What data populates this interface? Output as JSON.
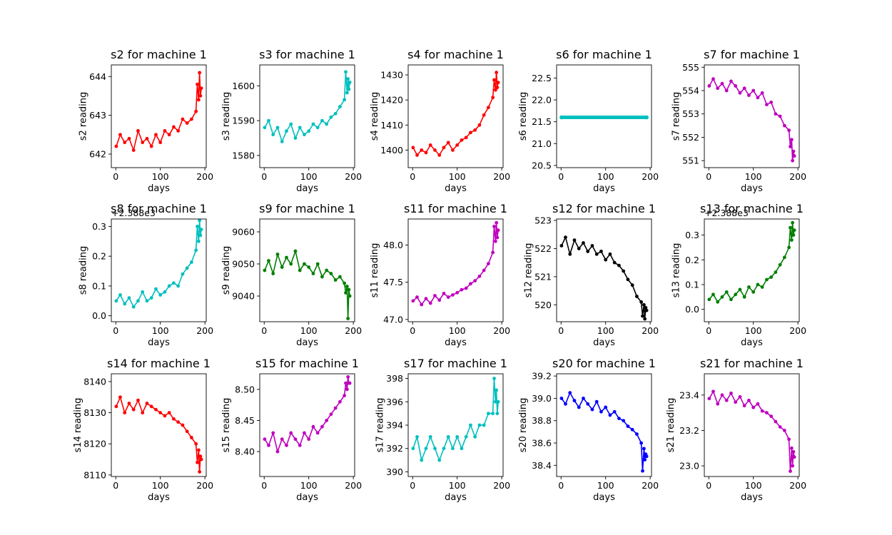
{
  "chart_data": [
    {
      "type": "line",
      "title": "s2 for machine 1",
      "xlabel": "days",
      "ylabel": "s2 reading",
      "color": "#ff0000",
      "xlim": [
        -10,
        203
      ],
      "ylim": [
        641.65,
        644.3
      ],
      "xticks": [
        0,
        100,
        200
      ],
      "yticks": [
        642,
        643,
        644
      ],
      "offset_text": "",
      "x": [
        1,
        10,
        20,
        30,
        40,
        50,
        60,
        70,
        80,
        90,
        100,
        110,
        120,
        130,
        140,
        150,
        160,
        170,
        180,
        183,
        186,
        188,
        190,
        192
      ],
      "y": [
        642.2,
        642.5,
        642.3,
        642.4,
        642.1,
        642.6,
        642.3,
        642.4,
        642.2,
        642.5,
        642.3,
        642.6,
        642.5,
        642.7,
        642.6,
        642.9,
        642.8,
        642.9,
        643.1,
        643.8,
        643.4,
        644.1,
        643.5,
        643.7
      ]
    },
    {
      "type": "line",
      "title": "s3 for machine 1",
      "xlabel": "days",
      "ylabel": "s3 reading",
      "color": "#00bfbf",
      "xlim": [
        -10,
        203
      ],
      "ylim": [
        1576.5,
        1606
      ],
      "xticks": [
        0,
        100,
        200
      ],
      "yticks": [
        1580,
        1590,
        1600
      ],
      "offset_text": "",
      "x": [
        1,
        10,
        20,
        30,
        40,
        50,
        60,
        70,
        80,
        90,
        100,
        110,
        120,
        130,
        140,
        150,
        160,
        170,
        180,
        183,
        186,
        188,
        190,
        192
      ],
      "y": [
        1588,
        1590,
        1586,
        1588,
        1584,
        1587,
        1589,
        1585,
        1588,
        1586,
        1587,
        1589,
        1588,
        1590,
        1589,
        1591,
        1592,
        1594,
        1596,
        1604,
        1598,
        1602,
        1599,
        1601
      ]
    },
    {
      "type": "line",
      "title": "s4 for machine 1",
      "xlabel": "days",
      "ylabel": "s4 reading",
      "color": "#ff0000",
      "xlim": [
        -10,
        203
      ],
      "ylim": [
        1393,
        1434
      ],
      "xticks": [
        0,
        100,
        200
      ],
      "yticks": [
        1400,
        1410,
        1420,
        1430
      ],
      "offset_text": "",
      "x": [
        1,
        10,
        20,
        30,
        40,
        50,
        60,
        70,
        80,
        90,
        100,
        110,
        120,
        130,
        140,
        150,
        160,
        170,
        180,
        183,
        186,
        188,
        190,
        192
      ],
      "y": [
        1401,
        1398,
        1400,
        1399,
        1402,
        1400,
        1398,
        1401,
        1403,
        1400,
        1402,
        1404,
        1405,
        1407,
        1408,
        1410,
        1414,
        1417,
        1421,
        1428,
        1424,
        1431,
        1425,
        1427
      ]
    },
    {
      "type": "scatter",
      "title": "s6 for machine 1",
      "xlabel": "days",
      "ylabel": "s6 reading",
      "color": "#00bfbf",
      "xlim": [
        -10,
        203
      ],
      "ylim": [
        20.45,
        22.8
      ],
      "xticks": [
        0,
        100,
        200
      ],
      "yticks": [
        20.5,
        21.0,
        21.5,
        22.0,
        22.5
      ],
      "offset_text": "",
      "x": [
        1,
        192
      ],
      "y": [
        21.6,
        21.6
      ]
    },
    {
      "type": "line",
      "title": "s7 for machine 1",
      "xlabel": "days",
      "ylabel": "s7 reading",
      "color": "#bf00bf",
      "xlim": [
        -10,
        203
      ],
      "ylim": [
        550.7,
        555.1
      ],
      "xticks": [
        0,
        100,
        200
      ],
      "yticks": [
        551,
        552,
        553,
        554,
        555
      ],
      "offset_text": "",
      "x": [
        1,
        10,
        20,
        30,
        40,
        50,
        60,
        70,
        80,
        90,
        100,
        110,
        120,
        130,
        140,
        150,
        160,
        170,
        180,
        183,
        186,
        188,
        190,
        192
      ],
      "y": [
        554.2,
        554.5,
        554.1,
        554.3,
        554.0,
        554.4,
        554.2,
        553.9,
        554.1,
        553.8,
        554.0,
        553.7,
        553.9,
        553.4,
        553.5,
        553.0,
        552.9,
        552.5,
        552.3,
        551.6,
        551.9,
        551.0,
        551.4,
        551.2
      ]
    },
    {
      "type": "line",
      "title": "s8 for machine 1",
      "xlabel": "days",
      "ylabel": "s8 reading",
      "color": "#00bfbf",
      "xlim": [
        -10,
        203
      ],
      "ylim": [
        -0.02,
        0.325
      ],
      "xticks": [
        0,
        100,
        200
      ],
      "yticks": [
        0.0,
        0.1,
        0.2,
        0.3
      ],
      "offset_text": "+2.388e3",
      "x": [
        1,
        10,
        20,
        30,
        40,
        50,
        60,
        70,
        80,
        90,
        100,
        110,
        120,
        130,
        140,
        150,
        160,
        170,
        180,
        183,
        186,
        188,
        190,
        192
      ],
      "y": [
        0.05,
        0.07,
        0.04,
        0.06,
        0.03,
        0.05,
        0.08,
        0.05,
        0.06,
        0.09,
        0.07,
        0.08,
        0.1,
        0.11,
        0.1,
        0.14,
        0.16,
        0.18,
        0.22,
        0.3,
        0.25,
        0.32,
        0.27,
        0.29
      ]
    },
    {
      "type": "line",
      "title": "s9 for machine 1",
      "xlabel": "days",
      "ylabel": "s9 reading",
      "color": "#007f00",
      "xlim": [
        -10,
        203
      ],
      "ylim": [
        9032,
        9064
      ],
      "xticks": [
        0,
        100,
        200
      ],
      "yticks": [
        9040,
        9050,
        9060
      ],
      "offset_text": "",
      "x": [
        1,
        10,
        20,
        30,
        40,
        50,
        60,
        70,
        80,
        90,
        100,
        110,
        120,
        130,
        140,
        150,
        160,
        170,
        180,
        183,
        186,
        188,
        190,
        192
      ],
      "y": [
        9048,
        9051,
        9047,
        9053,
        9049,
        9052,
        9050,
        9054,
        9048,
        9050,
        9049,
        9047,
        9050,
        9046,
        9048,
        9047,
        9045,
        9046,
        9044,
        9041,
        9043,
        9033,
        9042,
        9040
      ]
    },
    {
      "type": "line",
      "title": "s11 for machine 1",
      "xlabel": "days",
      "ylabel": "s11 reading",
      "color": "#bf00bf",
      "xlim": [
        -10,
        203
      ],
      "ylim": [
        46.97,
        48.35
      ],
      "xticks": [
        0,
        100,
        200
      ],
      "yticks": [
        47.0,
        47.5,
        48.0
      ],
      "offset_text": "",
      "x": [
        1,
        10,
        20,
        30,
        40,
        50,
        60,
        70,
        80,
        90,
        100,
        110,
        120,
        130,
        140,
        150,
        160,
        170,
        180,
        183,
        186,
        188,
        190,
        192
      ],
      "y": [
        47.25,
        47.3,
        47.2,
        47.28,
        47.22,
        47.32,
        47.26,
        47.35,
        47.3,
        47.33,
        47.36,
        47.4,
        47.42,
        47.48,
        47.52,
        47.58,
        47.66,
        47.75,
        47.9,
        48.25,
        48.05,
        48.3,
        48.1,
        48.2
      ]
    },
    {
      "type": "line",
      "title": "s12 for machine 1",
      "xlabel": "days",
      "ylabel": "s12 reading",
      "color": "#000000",
      "xlim": [
        -10,
        203
      ],
      "ylim": [
        519.4,
        523.05
      ],
      "xticks": [
        0,
        100,
        200
      ],
      "yticks": [
        520,
        521,
        522,
        523
      ],
      "offset_text": "",
      "x": [
        1,
        10,
        20,
        30,
        40,
        50,
        60,
        70,
        80,
        90,
        100,
        110,
        120,
        130,
        140,
        150,
        160,
        170,
        180,
        183,
        186,
        188,
        190,
        192
      ],
      "y": [
        522.1,
        522.4,
        521.8,
        522.3,
        522.0,
        522.2,
        521.9,
        522.1,
        521.8,
        521.9,
        521.6,
        521.8,
        521.5,
        521.4,
        521.2,
        520.9,
        520.7,
        520.3,
        520.1,
        519.6,
        520.0,
        519.5,
        519.9,
        519.8
      ]
    },
    {
      "type": "line",
      "title": "s13 for machine 1",
      "xlabel": "days",
      "ylabel": "s13 reading",
      "color": "#007f00",
      "xlim": [
        -10,
        203
      ],
      "ylim": [
        -0.05,
        0.365
      ],
      "xticks": [
        0,
        100,
        200
      ],
      "yticks": [
        0.0,
        0.1,
        0.2,
        0.3
      ],
      "offset_text": "+2.388e3",
      "x": [
        1,
        10,
        20,
        30,
        40,
        50,
        60,
        70,
        80,
        90,
        100,
        110,
        120,
        130,
        140,
        150,
        160,
        170,
        180,
        183,
        186,
        188,
        190,
        192
      ],
      "y": [
        0.04,
        0.06,
        0.03,
        0.05,
        0.07,
        0.04,
        0.06,
        0.08,
        0.05,
        0.09,
        0.07,
        0.1,
        0.09,
        0.12,
        0.13,
        0.15,
        0.18,
        0.21,
        0.25,
        0.33,
        0.28,
        0.35,
        0.3,
        0.32
      ]
    },
    {
      "type": "line",
      "title": "s14 for machine 1",
      "xlabel": "days",
      "ylabel": "s14 reading",
      "color": "#ff0000",
      "xlim": [
        -10,
        203
      ],
      "ylim": [
        8109.5,
        8142.5
      ],
      "xticks": [
        0,
        100,
        200
      ],
      "yticks": [
        8110,
        8120,
        8130,
        8140
      ],
      "offset_text": "",
      "x": [
        1,
        10,
        20,
        30,
        40,
        50,
        60,
        70,
        80,
        90,
        100,
        110,
        120,
        130,
        140,
        150,
        160,
        170,
        180,
        183,
        186,
        188,
        190,
        192
      ],
      "y": [
        8132,
        8135,
        8130,
        8133,
        8131,
        8134,
        8130,
        8133,
        8132,
        8131,
        8130,
        8129,
        8130,
        8128,
        8127,
        8126,
        8124,
        8122,
        8120,
        8114,
        8118,
        8111,
        8116,
        8115
      ]
    },
    {
      "type": "line",
      "title": "s15 for machine 1",
      "xlabel": "days",
      "ylabel": "s15 reading",
      "color": "#bf00bf",
      "xlim": [
        -10,
        203
      ],
      "ylim": [
        8.36,
        8.525
      ],
      "xticks": [
        0,
        100,
        200
      ],
      "yticks": [
        8.4,
        8.45,
        8.5
      ],
      "offset_text": "",
      "x": [
        1,
        10,
        20,
        30,
        40,
        50,
        60,
        70,
        80,
        90,
        100,
        110,
        120,
        130,
        140,
        150,
        160,
        170,
        180,
        183,
        186,
        188,
        190,
        192
      ],
      "y": [
        8.42,
        8.41,
        8.43,
        8.4,
        8.42,
        8.41,
        8.43,
        8.42,
        8.41,
        8.43,
        8.42,
        8.44,
        8.43,
        8.44,
        8.45,
        8.46,
        8.47,
        8.48,
        8.49,
        8.51,
        8.5,
        8.52,
        8.51,
        8.51
      ]
    },
    {
      "type": "line",
      "title": "s17 for machine 1",
      "xlabel": "days",
      "ylabel": "s17 reading",
      "color": "#00bfbf",
      "xlim": [
        -10,
        203
      ],
      "ylim": [
        389.6,
        398.4
      ],
      "xticks": [
        0,
        100,
        200
      ],
      "yticks": [
        390,
        392,
        394,
        396,
        398
      ],
      "offset_text": "",
      "x": [
        1,
        10,
        20,
        30,
        40,
        50,
        60,
        70,
        80,
        90,
        100,
        110,
        120,
        130,
        140,
        150,
        160,
        170,
        180,
        183,
        186,
        188,
        190,
        192
      ],
      "y": [
        392,
        393,
        391,
        392,
        393,
        392,
        391,
        392,
        393,
        392,
        393,
        392,
        393,
        394,
        393,
        394,
        394,
        395,
        395,
        398,
        396,
        397,
        395,
        396
      ]
    },
    {
      "type": "line",
      "title": "s20 for machine 1",
      "xlabel": "days",
      "ylabel": "s20 reading",
      "color": "#0000ff",
      "xlim": [
        -10,
        203
      ],
      "ylim": [
        38.3,
        39.22
      ],
      "xticks": [
        0,
        100,
        200
      ],
      "yticks": [
        38.4,
        38.6,
        38.8,
        39.0,
        39.2
      ],
      "offset_text": "",
      "x": [
        1,
        10,
        20,
        30,
        40,
        50,
        60,
        70,
        80,
        90,
        100,
        110,
        120,
        130,
        140,
        150,
        160,
        170,
        180,
        183,
        186,
        188,
        190,
        192
      ],
      "y": [
        39.0,
        38.95,
        39.05,
        38.98,
        38.92,
        39.0,
        38.95,
        38.9,
        38.97,
        38.88,
        38.92,
        38.85,
        38.88,
        38.82,
        38.8,
        38.75,
        38.72,
        38.68,
        38.6,
        38.35,
        38.55,
        38.45,
        38.5,
        38.48
      ]
    },
    {
      "type": "line",
      "title": "s21 for machine 1",
      "xlabel": "days",
      "ylabel": "s21 reading",
      "color": "#bf00bf",
      "xlim": [
        -10,
        203
      ],
      "ylim": [
        22.94,
        23.52
      ],
      "xticks": [
        0,
        100,
        200
      ],
      "yticks": [
        23.0,
        23.2,
        23.4
      ],
      "offset_text": "",
      "x": [
        1,
        10,
        20,
        30,
        40,
        50,
        60,
        70,
        80,
        90,
        100,
        110,
        120,
        130,
        140,
        150,
        160,
        170,
        180,
        183,
        186,
        188,
        190,
        192
      ],
      "y": [
        23.38,
        23.42,
        23.35,
        23.4,
        23.37,
        23.41,
        23.36,
        23.39,
        23.34,
        23.37,
        23.33,
        23.35,
        23.31,
        23.3,
        23.28,
        23.25,
        23.22,
        23.2,
        23.15,
        22.97,
        23.1,
        23.0,
        23.08,
        23.05
      ]
    }
  ]
}
